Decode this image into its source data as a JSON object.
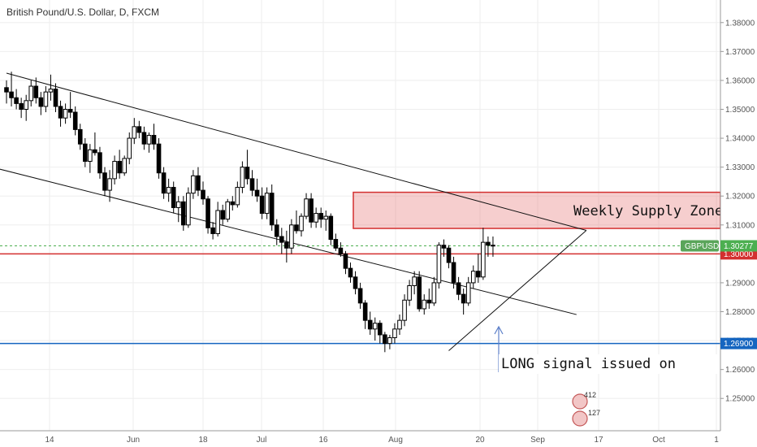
{
  "chart_data": {
    "type": "candlestick",
    "title": "British Pound/U.S. Dollar, D, FXCM",
    "symbol": "GBPUSD",
    "current_price": 1.30277,
    "current_price_label": "1.30277",
    "ylim": [
      1.245,
      1.385
    ],
    "y_ticks": [
      "1.38000",
      "1.37000",
      "1.36000",
      "1.35000",
      "1.34000",
      "1.33000",
      "1.32000",
      "1.31000",
      "1.30000",
      "1.29000",
      "1.28000",
      "1.27000",
      "1.26000",
      "1.25000"
    ],
    "x_ticks": [
      "14",
      "Jun",
      "18",
      "Jul",
      "16",
      "Aug",
      "20",
      "Sep",
      "17",
      "Oct",
      "1"
    ],
    "grid": true,
    "levels": [
      {
        "price": 1.3,
        "label": "1.30000",
        "color": "#d32f2f"
      },
      {
        "price": 1.269,
        "label": "1.26900",
        "color": "#1565c0"
      }
    ],
    "supply_zone": {
      "label": "Weekly Supply Zone",
      "top": 1.3213,
      "bottom": 1.3088,
      "color": "#e57373"
    },
    "signal_label": "LONG signal issued on",
    "badges": [
      "412",
      "127"
    ],
    "candles": [
      [
        1.3575,
        1.36,
        1.352,
        1.356
      ],
      [
        1.356,
        1.363,
        1.351,
        1.354
      ],
      [
        1.354,
        1.357,
        1.35,
        1.352
      ],
      [
        1.352,
        1.354,
        1.347,
        1.35
      ],
      [
        1.35,
        1.355,
        1.346,
        1.353
      ],
      [
        1.353,
        1.36,
        1.351,
        1.358
      ],
      [
        1.358,
        1.361,
        1.352,
        1.354
      ],
      [
        1.354,
        1.356,
        1.348,
        1.351
      ],
      [
        1.351,
        1.358,
        1.349,
        1.356
      ],
      [
        1.356,
        1.362,
        1.353,
        1.357
      ],
      [
        1.357,
        1.359,
        1.349,
        1.351
      ],
      [
        1.351,
        1.353,
        1.344,
        1.347
      ],
      [
        1.347,
        1.352,
        1.345,
        1.35
      ],
      [
        1.35,
        1.356,
        1.347,
        1.349
      ],
      [
        1.349,
        1.351,
        1.341,
        1.343
      ],
      [
        1.343,
        1.345,
        1.336,
        1.338
      ],
      [
        1.338,
        1.34,
        1.33,
        1.332
      ],
      [
        1.332,
        1.338,
        1.328,
        1.336
      ],
      [
        1.336,
        1.342,
        1.334,
        1.335
      ],
      [
        1.335,
        1.337,
        1.326,
        1.328
      ],
      [
        1.328,
        1.33,
        1.32,
        1.322
      ],
      [
        1.322,
        1.329,
        1.318,
        1.326
      ],
      [
        1.326,
        1.334,
        1.324,
        1.332
      ],
      [
        1.332,
        1.336,
        1.326,
        1.328
      ],
      [
        1.328,
        1.334,
        1.327,
        1.333
      ],
      [
        1.333,
        1.342,
        1.331,
        1.34
      ],
      [
        1.34,
        1.347,
        1.338,
        1.344
      ],
      [
        1.344,
        1.346,
        1.34,
        1.342
      ],
      [
        1.342,
        1.344,
        1.336,
        1.338
      ],
      [
        1.338,
        1.342,
        1.335,
        1.341
      ],
      [
        1.341,
        1.345,
        1.336,
        1.338
      ],
      [
        1.338,
        1.34,
        1.326,
        1.328
      ],
      [
        1.328,
        1.33,
        1.319,
        1.321
      ],
      [
        1.321,
        1.326,
        1.318,
        1.323
      ],
      [
        1.323,
        1.325,
        1.314,
        1.316
      ],
      [
        1.316,
        1.32,
        1.311,
        1.318
      ],
      [
        1.318,
        1.32,
        1.308,
        1.31
      ],
      [
        1.31,
        1.323,
        1.309,
        1.321
      ],
      [
        1.321,
        1.329,
        1.319,
        1.327
      ],
      [
        1.327,
        1.33,
        1.32,
        1.322
      ],
      [
        1.322,
        1.325,
        1.317,
        1.319
      ],
      [
        1.319,
        1.32,
        1.307,
        1.309
      ],
      [
        1.309,
        1.311,
        1.305,
        1.307
      ],
      [
        1.307,
        1.318,
        1.306,
        1.315
      ],
      [
        1.315,
        1.317,
        1.31,
        1.312
      ],
      [
        1.312,
        1.319,
        1.311,
        1.318
      ],
      [
        1.318,
        1.32,
        1.315,
        1.317
      ],
      [
        1.317,
        1.325,
        1.316,
        1.323
      ],
      [
        1.323,
        1.332,
        1.321,
        1.33
      ],
      [
        1.33,
        1.336,
        1.324,
        1.326
      ],
      [
        1.326,
        1.329,
        1.32,
        1.322
      ],
      [
        1.322,
        1.326,
        1.318,
        1.32
      ],
      [
        1.32,
        1.323,
        1.312,
        1.314
      ],
      [
        1.314,
        1.323,
        1.312,
        1.321
      ],
      [
        1.321,
        1.324,
        1.308,
        1.31
      ],
      [
        1.31,
        1.312,
        1.303,
        1.306
      ],
      [
        1.306,
        1.309,
        1.3,
        1.304
      ],
      [
        1.304,
        1.308,
        1.297,
        1.302
      ],
      [
        1.302,
        1.312,
        1.3,
        1.31
      ],
      [
        1.31,
        1.315,
        1.307,
        1.308
      ],
      [
        1.308,
        1.314,
        1.306,
        1.313
      ],
      [
        1.313,
        1.321,
        1.312,
        1.319
      ],
      [
        1.319,
        1.321,
        1.309,
        1.311
      ],
      [
        1.311,
        1.316,
        1.309,
        1.314
      ],
      [
        1.314,
        1.316,
        1.309,
        1.312
      ],
      [
        1.312,
        1.315,
        1.308,
        1.313
      ],
      [
        1.313,
        1.314,
        1.303,
        1.305
      ],
      [
        1.305,
        1.307,
        1.301,
        1.302
      ],
      [
        1.302,
        1.304,
        1.299,
        1.3
      ],
      [
        1.3,
        1.301,
        1.293,
        1.295
      ],
      [
        1.295,
        1.297,
        1.29,
        1.292
      ],
      [
        1.292,
        1.294,
        1.286,
        1.288
      ],
      [
        1.288,
        1.29,
        1.281,
        1.283
      ],
      [
        1.283,
        1.284,
        1.274,
        1.277
      ],
      [
        1.277,
        1.28,
        1.272,
        1.274
      ],
      [
        1.274,
        1.278,
        1.27,
        1.276
      ],
      [
        1.276,
        1.277,
        1.269,
        1.272
      ],
      [
        1.272,
        1.273,
        1.266,
        1.269
      ],
      [
        1.269,
        1.272,
        1.267,
        1.271
      ],
      [
        1.271,
        1.276,
        1.269,
        1.274
      ],
      [
        1.274,
        1.279,
        1.272,
        1.277
      ],
      [
        1.277,
        1.286,
        1.275,
        1.284
      ],
      [
        1.284,
        1.291,
        1.282,
        1.289
      ],
      [
        1.289,
        1.294,
        1.286,
        1.292
      ],
      [
        1.292,
        1.294,
        1.28,
        1.281
      ],
      [
        1.281,
        1.286,
        1.279,
        1.284
      ],
      [
        1.284,
        1.288,
        1.281,
        1.283
      ],
      [
        1.283,
        1.292,
        1.282,
        1.29
      ],
      [
        1.29,
        1.304,
        1.288,
        1.303
      ],
      [
        1.303,
        1.305,
        1.299,
        1.302
      ],
      [
        1.302,
        1.303,
        1.295,
        1.297
      ],
      [
        1.297,
        1.299,
        1.288,
        1.29
      ],
      [
        1.29,
        1.292,
        1.284,
        1.286
      ],
      [
        1.286,
        1.288,
        1.279,
        1.283
      ],
      [
        1.283,
        1.292,
        1.282,
        1.29
      ],
      [
        1.29,
        1.296,
        1.288,
        1.294
      ],
      [
        1.294,
        1.3,
        1.29,
        1.292
      ],
      [
        1.292,
        1.309,
        1.291,
        1.304
      ],
      [
        1.304,
        1.306,
        1.299,
        1.303
      ],
      [
        1.303,
        1.306,
        1.299,
        1.3027
      ]
    ],
    "channel_lines": [
      {
        "from": [
          0,
          1.3625
        ],
        "to": [
          118,
          1.3081
        ]
      },
      {
        "from": [
          -3,
          1.33
        ],
        "to": [
          116,
          1.279
        ]
      },
      {
        "from": [
          90,
          1.2665
        ],
        "to": [
          118,
          1.3081
        ]
      }
    ]
  }
}
